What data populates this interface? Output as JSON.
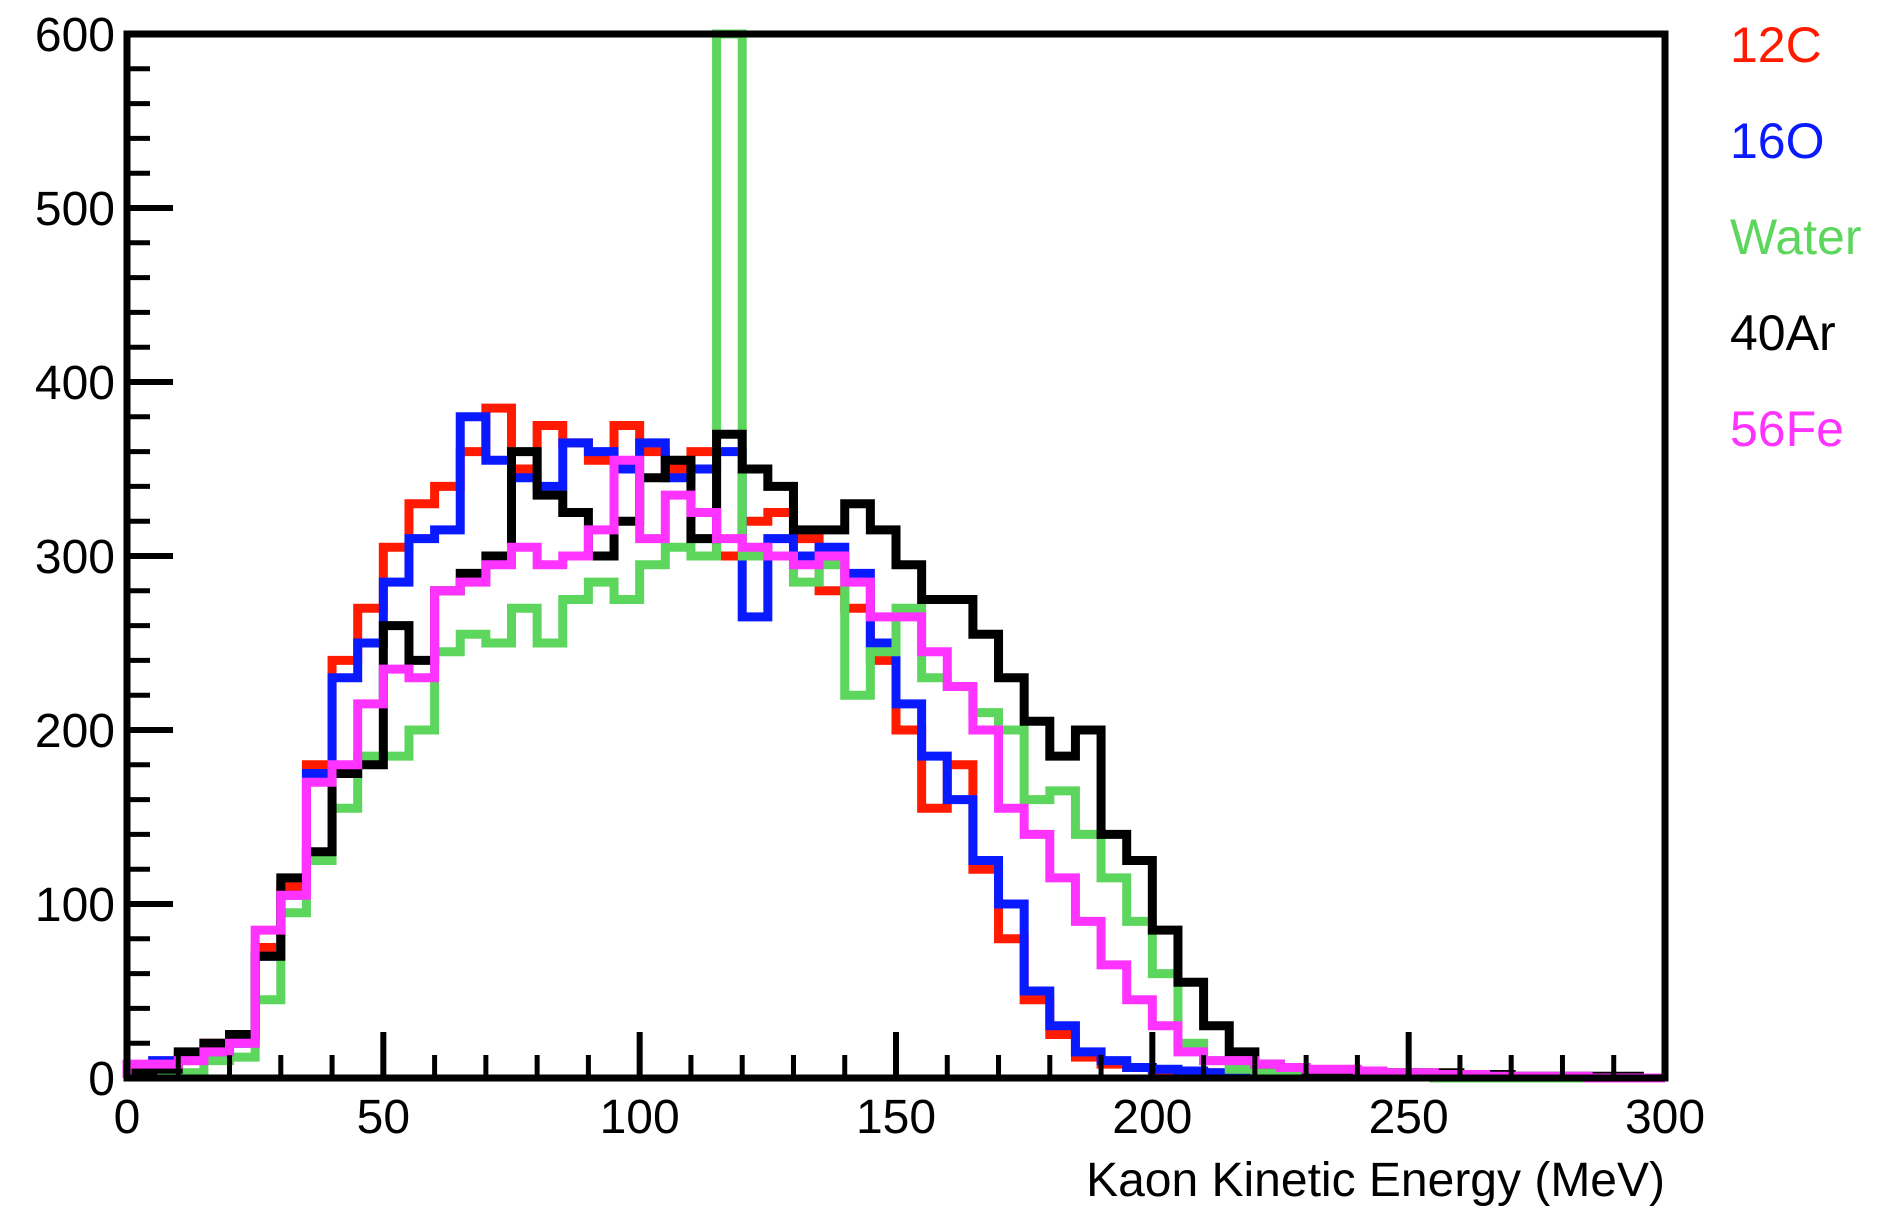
{
  "chart_data": {
    "type": "line",
    "subtype": "step-histogram",
    "title": "",
    "xlabel": "Kaon Kinetic Energy (MeV)",
    "ylabel": "",
    "xlim": [
      0,
      300
    ],
    "ylim": [
      0,
      600
    ],
    "x_ticks": [
      0,
      50,
      100,
      150,
      200,
      250,
      300
    ],
    "y_ticks": [
      0,
      100,
      200,
      300,
      400,
      500,
      600
    ],
    "x_tick_labels": [
      "0",
      "50",
      "100",
      "150",
      "200",
      "250",
      "300"
    ],
    "y_tick_labels": [
      "0",
      "100",
      "200",
      "300",
      "400",
      "500",
      "600"
    ],
    "grid": false,
    "legend_position": "right",
    "bin_edges": [
      0,
      5,
      10,
      15,
      20,
      25,
      30,
      35,
      40,
      45,
      50,
      55,
      60,
      65,
      70,
      75,
      80,
      85,
      90,
      95,
      100,
      105,
      110,
      115,
      120,
      125,
      130,
      135,
      140,
      145,
      150,
      155,
      160,
      165,
      170,
      175,
      180,
      185,
      190,
      195,
      200,
      205,
      210,
      215,
      220,
      225,
      230,
      235,
      240,
      245,
      250,
      255,
      260,
      265,
      270,
      275,
      280,
      285,
      290,
      295,
      300
    ],
    "series": [
      {
        "name": "12C",
        "color": "#ff1a00",
        "values": [
          5,
          5,
          10,
          20,
          25,
          75,
          110,
          180,
          240,
          270,
          305,
          330,
          340,
          360,
          385,
          350,
          375,
          365,
          355,
          375,
          360,
          350,
          360,
          300,
          320,
          325,
          310,
          280,
          270,
          240,
          200,
          155,
          180,
          120,
          80,
          45,
          25,
          12,
          8,
          6,
          4,
          4,
          3,
          3,
          2,
          2,
          1,
          1,
          1,
          1,
          1,
          0,
          0,
          0,
          0,
          0,
          0,
          0,
          0,
          0
        ]
      },
      {
        "name": "16O",
        "color": "#0a1aff",
        "values": [
          5,
          10,
          12,
          15,
          20,
          70,
          105,
          175,
          230,
          250,
          285,
          310,
          315,
          380,
          355,
          345,
          340,
          365,
          360,
          350,
          365,
          345,
          350,
          360,
          265,
          310,
          300,
          305,
          290,
          250,
          215,
          185,
          160,
          125,
          100,
          50,
          30,
          15,
          10,
          6,
          5,
          4,
          3,
          3,
          2,
          2,
          1,
          1,
          1,
          1,
          1,
          0,
          0,
          0,
          0,
          0,
          0,
          0,
          0,
          0
        ]
      },
      {
        "name": "Water",
        "color": "#5cd65c",
        "values": [
          5,
          3,
          3,
          10,
          12,
          45,
          95,
          125,
          155,
          185,
          185,
          200,
          245,
          255,
          250,
          270,
          250,
          275,
          285,
          275,
          295,
          305,
          300,
          600,
          300,
          300,
          285,
          295,
          220,
          245,
          270,
          230,
          225,
          210,
          200,
          160,
          165,
          140,
          115,
          90,
          60,
          20,
          10,
          5,
          3,
          2,
          2,
          1,
          1,
          1,
          1,
          0,
          0,
          0,
          0,
          0,
          0,
          0,
          0,
          0
        ]
      },
      {
        "name": "40Ar",
        "color": "#000000",
        "values": [
          3,
          5,
          15,
          20,
          25,
          70,
          115,
          130,
          175,
          180,
          260,
          240,
          280,
          290,
          300,
          360,
          335,
          325,
          300,
          320,
          345,
          355,
          310,
          370,
          350,
          340,
          315,
          315,
          330,
          315,
          295,
          275,
          275,
          255,
          230,
          205,
          185,
          200,
          140,
          125,
          85,
          55,
          30,
          15,
          8,
          6,
          4,
          3,
          3,
          3,
          3,
          3,
          2,
          2,
          1,
          1,
          1,
          1,
          1,
          0
        ]
      },
      {
        "name": "56Fe",
        "color": "#ff33ff",
        "values": [
          8,
          8,
          10,
          15,
          20,
          85,
          105,
          170,
          180,
          215,
          235,
          230,
          280,
          285,
          295,
          305,
          295,
          300,
          315,
          355,
          310,
          335,
          325,
          310,
          305,
          300,
          295,
          300,
          285,
          265,
          265,
          245,
          225,
          200,
          155,
          140,
          115,
          90,
          65,
          45,
          30,
          15,
          10,
          10,
          8,
          6,
          5,
          5,
          4,
          3,
          3,
          2,
          2,
          1,
          1,
          1,
          1,
          0,
          0,
          0
        ]
      }
    ]
  }
}
